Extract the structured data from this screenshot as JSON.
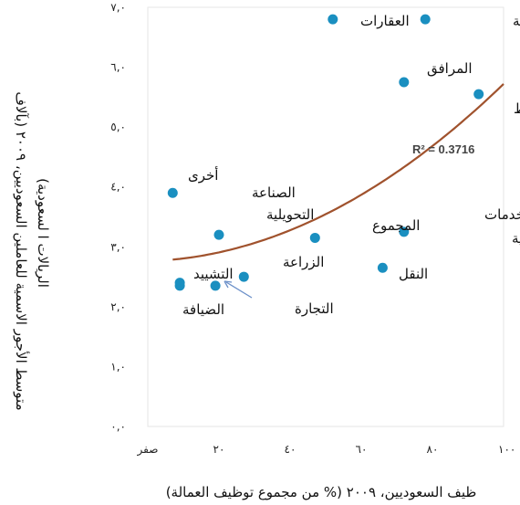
{
  "chart_data": {
    "type": "scatter",
    "xlabel": "ظيف السعوديين، ٢٠٠٩ (% من مجموع توظيف العمالة)",
    "ylabel_line1": "متوسط الأجور الاسمية للعاملين السعوديين، ٢٠٠٩ (بآلاف",
    "ylabel_line2": "الريالات ا لسعودية)",
    "xlim": [
      0,
      100
    ],
    "ylim": [
      0,
      7
    ],
    "x_ticks": [
      {
        "value": 0,
        "label": "صفر"
      },
      {
        "value": 20,
        "label": "٢٠"
      },
      {
        "value": 40,
        "label": "٤٠"
      },
      {
        "value": 60,
        "label": "٦٠"
      },
      {
        "value": 80,
        "label": "٨٠"
      },
      {
        "value": 100,
        "label": "١٠٠"
      }
    ],
    "y_ticks": [
      {
        "value": 0,
        "label": "٠,٠"
      },
      {
        "value": 1,
        "label": "١,٠"
      },
      {
        "value": 2,
        "label": "٢,٠"
      },
      {
        "value": 3,
        "label": "٣,٠"
      },
      {
        "value": 4,
        "label": "٤,٠"
      },
      {
        "value": 5,
        "label": "٥,٠"
      },
      {
        "value": 6,
        "label": "٦,٠"
      },
      {
        "value": 7,
        "label": "٧,٠"
      }
    ],
    "points": [
      {
        "label": "العقارات",
        "x": 52,
        "y": 6.8
      },
      {
        "label": "الصيرفة",
        "x": 78,
        "y": 6.8
      },
      {
        "label": "المرافق",
        "x": 72,
        "y": 5.75
      },
      {
        "label": "النفط",
        "x": 93,
        "y": 5.55
      },
      {
        "label": "أخرى",
        "x": 7,
        "y": 3.9
      },
      {
        "label": "الصناعة التحويلية",
        "x": 20,
        "y": 3.2
      },
      {
        "label": "المجموع",
        "x": 47,
        "y": 3.15
      },
      {
        "label": "الخدمات الاجتماعية",
        "x": 72,
        "y": 3.25
      },
      {
        "label": "النقل",
        "x": 66,
        "y": 2.65
      },
      {
        "label": "الزراعة",
        "x": 27,
        "y": 2.5
      },
      {
        "label": "التشييد",
        "x": 9,
        "y": 2.35
      },
      {
        "label": "الضيافة",
        "x": 9,
        "y": 2.4
      },
      {
        "label": "التجارة",
        "x": 19,
        "y": 2.35
      }
    ],
    "trendline": {
      "type": "polynomial",
      "coeffs": [
        2.76,
        0.0018,
        0.000278
      ],
      "r_squared_label": "R² = 0.3716"
    },
    "colors": {
      "points": "#1a8fc0",
      "trendline": "#a0522d",
      "annotation_arrow": "#6a8fc8"
    }
  }
}
